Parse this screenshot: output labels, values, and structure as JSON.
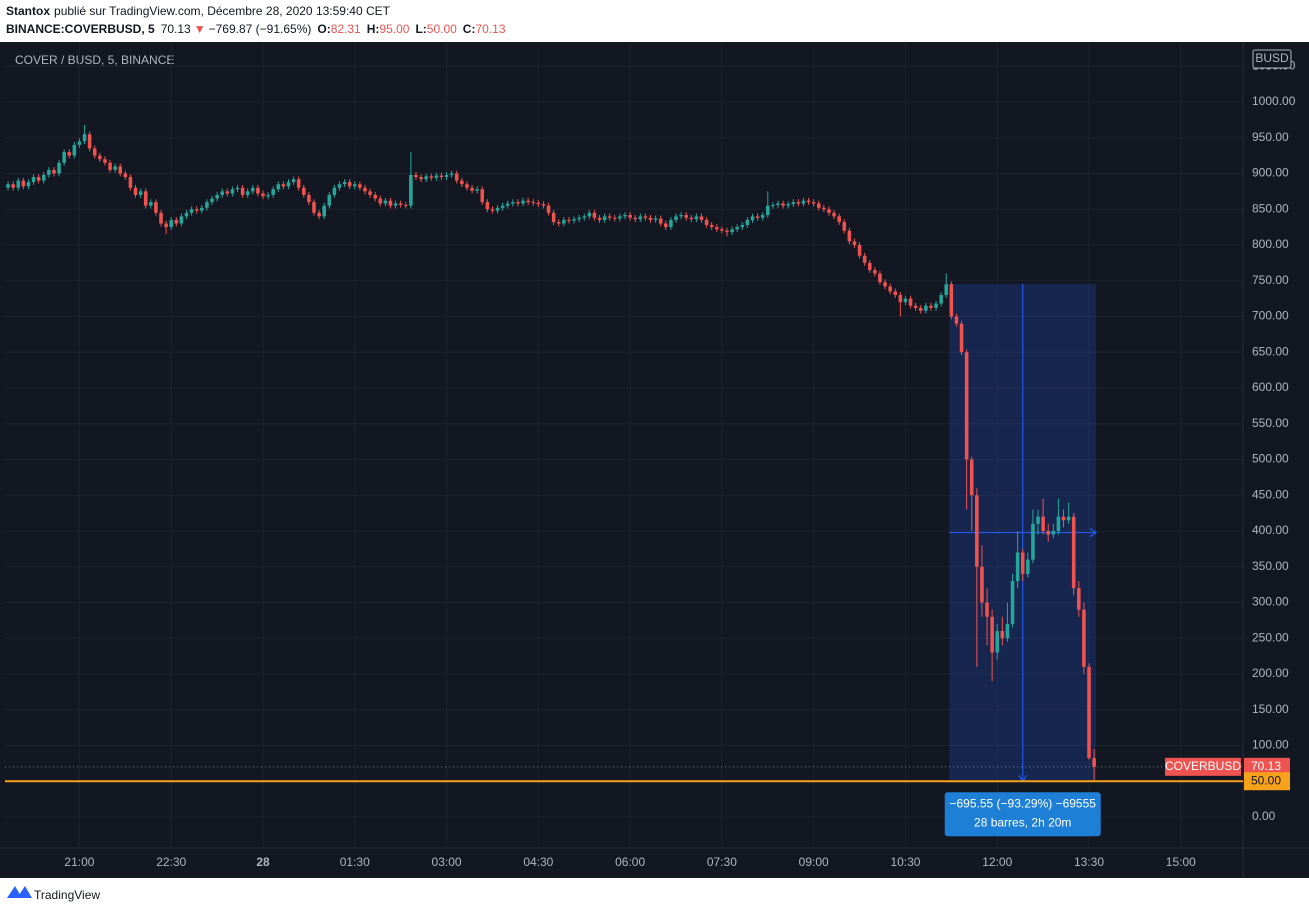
{
  "header": {
    "author": "Stantox",
    "byline": "publié sur TradingView.com, Décembre 28, 2020 13:59:40 CET",
    "symbol": "BINANCE:COVERBUSD, 5",
    "last": "70.13",
    "arrow": "▼",
    "change": "−769.87 (−91.65%)",
    "ohlc": [
      {
        "key": "O:",
        "value": "82.31"
      },
      {
        "key": "H:",
        "value": "95.00"
      },
      {
        "key": "L:",
        "value": "50.00"
      },
      {
        "key": "C:",
        "value": "70.13"
      }
    ]
  },
  "footer": {
    "brand": "TradingView"
  },
  "chart_data": {
    "type": "candlestick",
    "title": "COVER / BUSD, 5, BINANCE",
    "currency": "BUSD",
    "up_color": "#26a69a",
    "down_color": "#ef5350",
    "grid": true,
    "xlim": [
      -0.6,
      242.2
    ],
    "ylim": [
      -43.4,
      1083.9
    ],
    "xticks": [
      {
        "value": 14,
        "label": "21:00"
      },
      {
        "value": 32,
        "label": "22:30"
      },
      {
        "value": 50,
        "label": "28"
      },
      {
        "value": 68,
        "label": "01:30"
      },
      {
        "value": 86,
        "label": "03:00"
      },
      {
        "value": 104,
        "label": "04:30"
      },
      {
        "value": 122,
        "label": "06:00"
      },
      {
        "value": 140,
        "label": "07:30"
      },
      {
        "value": 158,
        "label": "09:00"
      },
      {
        "value": 176,
        "label": "10:30"
      },
      {
        "value": 194,
        "label": "12:00"
      },
      {
        "value": 212,
        "label": "13:30"
      },
      {
        "value": 230,
        "label": "15:00"
      }
    ],
    "yticks": [
      {
        "value": 0,
        "label": "0.00"
      },
      {
        "value": 50,
        "label": "50.00"
      },
      {
        "value": 100,
        "label": "100.00"
      },
      {
        "value": 150,
        "label": "150.00"
      },
      {
        "value": 200,
        "label": "200.00"
      },
      {
        "value": 250,
        "label": "250.00"
      },
      {
        "value": 300,
        "label": "300.00"
      },
      {
        "value": 350,
        "label": "350.00"
      },
      {
        "value": 400,
        "label": "400.00"
      },
      {
        "value": 450,
        "label": "450.00"
      },
      {
        "value": 500,
        "label": "500.00"
      },
      {
        "value": 550,
        "label": "550.00"
      },
      {
        "value": 600,
        "label": "600.00"
      },
      {
        "value": 650,
        "label": "650.00"
      },
      {
        "value": 700,
        "label": "700.00"
      },
      {
        "value": 750,
        "label": "750.00"
      },
      {
        "value": 800,
        "label": "800.00"
      },
      {
        "value": 850,
        "label": "850.00"
      },
      {
        "value": 900,
        "label": "900.00"
      },
      {
        "value": 950,
        "label": "950.00"
      },
      {
        "value": 1000,
        "label": "1000.00"
      },
      {
        "value": 1050,
        "label": "1050.00"
      }
    ],
    "price_lines": [
      {
        "name": "COVERBUSD",
        "value": 70.13,
        "color": "#ef5350"
      },
      {
        "value": 50,
        "label": "50.00",
        "color": "#f7a21b"
      }
    ],
    "measure": {
      "start": 185,
      "end": 213,
      "top": 745.55,
      "bottom": 50,
      "color": "#2962ff",
      "text": [
        "−695.55 (−93.29%) −69555",
        "28 barres, 2h 20m"
      ]
    },
    "candles": [
      [
        880,
        889,
        876,
        885
      ],
      [
        885,
        889,
        876,
        880
      ],
      [
        880,
        894,
        876,
        890
      ],
      [
        890,
        894,
        878,
        882
      ],
      [
        882,
        892,
        878,
        888
      ],
      [
        888,
        899,
        884,
        895
      ],
      [
        895,
        899,
        886,
        890
      ],
      [
        890,
        902,
        886,
        898
      ],
      [
        898,
        909,
        894,
        905
      ],
      [
        905,
        909,
        896,
        900
      ],
      [
        900,
        919,
        896,
        915
      ],
      [
        915,
        934,
        911,
        930
      ],
      [
        930,
        934,
        921,
        925
      ],
      [
        925,
        944,
        921,
        940
      ],
      [
        940,
        949,
        936,
        945
      ],
      [
        945,
        968,
        941,
        955
      ],
      [
        955,
        959,
        931,
        935
      ],
      [
        935,
        939,
        921,
        925
      ],
      [
        925,
        929,
        916,
        920
      ],
      [
        920,
        924,
        911,
        915
      ],
      [
        915,
        919,
        901,
        905
      ],
      [
        905,
        914,
        901,
        910
      ],
      [
        910,
        914,
        896,
        900
      ],
      [
        900,
        904,
        891,
        895
      ],
      [
        895,
        899,
        876,
        880
      ],
      [
        880,
        884,
        866,
        870
      ],
      [
        870,
        879,
        866,
        875
      ],
      [
        875,
        879,
        851,
        855
      ],
      [
        855,
        864,
        851,
        860
      ],
      [
        860,
        864,
        841,
        845
      ],
      [
        845,
        849,
        826,
        830
      ],
      [
        830,
        834,
        815,
        825
      ],
      [
        825,
        839,
        821,
        835
      ],
      [
        835,
        839,
        826,
        830
      ],
      [
        830,
        844,
        826,
        840
      ],
      [
        840,
        849,
        836,
        845
      ],
      [
        845,
        854,
        841,
        850
      ],
      [
        850,
        854,
        844,
        848
      ],
      [
        848,
        856,
        844,
        852
      ],
      [
        852,
        864,
        848,
        860
      ],
      [
        860,
        869,
        856,
        865
      ],
      [
        865,
        874,
        861,
        870
      ],
      [
        870,
        879,
        866,
        875
      ],
      [
        875,
        879,
        868,
        872
      ],
      [
        872,
        882,
        868,
        878
      ],
      [
        878,
        884,
        874,
        880
      ],
      [
        880,
        884,
        866,
        870
      ],
      [
        870,
        879,
        866,
        875
      ],
      [
        875,
        884,
        871,
        880
      ],
      [
        880,
        884,
        868,
        872
      ],
      [
        872,
        876,
        864,
        868
      ],
      [
        868,
        874,
        864,
        870
      ],
      [
        870,
        882,
        866,
        878
      ],
      [
        878,
        889,
        874,
        885
      ],
      [
        885,
        889,
        878,
        882
      ],
      [
        882,
        892,
        878,
        888
      ],
      [
        888,
        896,
        884,
        892
      ],
      [
        892,
        896,
        876,
        880
      ],
      [
        880,
        884,
        866,
        870
      ],
      [
        870,
        874,
        856,
        860
      ],
      [
        860,
        864,
        841,
        845
      ],
      [
        845,
        849,
        836,
        840
      ],
      [
        840,
        859,
        836,
        855
      ],
      [
        855,
        874,
        851,
        870
      ],
      [
        870,
        884,
        866,
        880
      ],
      [
        880,
        889,
        876,
        885
      ],
      [
        885,
        892,
        881,
        888
      ],
      [
        888,
        892,
        878,
        882
      ],
      [
        882,
        889,
        878,
        885
      ],
      [
        885,
        889,
        876,
        880
      ],
      [
        880,
        884,
        871,
        875
      ],
      [
        875,
        879,
        866,
        870
      ],
      [
        870,
        874,
        861,
        865
      ],
      [
        865,
        869,
        854,
        858
      ],
      [
        858,
        866,
        854,
        862
      ],
      [
        862,
        866,
        851,
        855
      ],
      [
        855,
        862,
        851,
        858
      ],
      [
        858,
        862,
        852,
        856
      ],
      [
        856,
        860,
        851,
        855
      ],
      [
        855,
        930,
        851,
        898
      ],
      [
        898,
        902,
        891,
        895
      ],
      [
        895,
        899,
        888,
        892
      ],
      [
        892,
        900,
        888,
        896
      ],
      [
        896,
        900,
        890,
        894
      ],
      [
        894,
        901,
        890,
        897
      ],
      [
        897,
        901,
        891,
        895
      ],
      [
        895,
        902,
        891,
        898
      ],
      [
        898,
        904,
        894,
        900
      ],
      [
        900,
        904,
        886,
        890
      ],
      [
        890,
        894,
        881,
        885
      ],
      [
        885,
        889,
        876,
        880
      ],
      [
        880,
        884,
        872,
        876
      ],
      [
        876,
        882,
        872,
        878
      ],
      [
        878,
        882,
        856,
        860
      ],
      [
        860,
        864,
        846,
        850
      ],
      [
        850,
        854,
        844,
        848
      ],
      [
        848,
        856,
        844,
        852
      ],
      [
        852,
        859,
        848,
        855
      ],
      [
        855,
        862,
        851,
        858
      ],
      [
        858,
        864,
        854,
        860
      ],
      [
        860,
        864,
        854,
        858
      ],
      [
        858,
        866,
        854,
        862
      ],
      [
        862,
        866,
        856,
        860
      ],
      [
        860,
        864,
        855,
        859
      ],
      [
        859,
        863,
        853,
        857
      ],
      [
        857,
        861,
        851,
        855
      ],
      [
        855,
        859,
        841,
        845
      ],
      [
        845,
        849,
        828,
        832
      ],
      [
        832,
        836,
        826,
        830
      ],
      [
        830,
        839,
        826,
        835
      ],
      [
        835,
        839,
        830,
        834
      ],
      [
        834,
        840,
        830,
        836
      ],
      [
        836,
        842,
        832,
        838
      ],
      [
        838,
        844,
        834,
        840
      ],
      [
        840,
        849,
        836,
        845
      ],
      [
        845,
        849,
        834,
        838
      ],
      [
        838,
        842,
        831,
        835
      ],
      [
        835,
        844,
        831,
        840
      ],
      [
        840,
        844,
        834,
        838
      ],
      [
        838,
        842,
        833,
        837
      ],
      [
        837,
        844,
        833,
        840
      ],
      [
        840,
        846,
        836,
        842
      ],
      [
        842,
        846,
        834,
        838
      ],
      [
        838,
        842,
        832,
        836
      ],
      [
        836,
        844,
        832,
        840
      ],
      [
        840,
        844,
        834,
        838
      ],
      [
        838,
        842,
        831,
        835
      ],
      [
        835,
        841,
        831,
        837
      ],
      [
        837,
        841,
        826,
        830
      ],
      [
        830,
        834,
        821,
        825
      ],
      [
        825,
        839,
        821,
        835
      ],
      [
        835,
        844,
        831,
        840
      ],
      [
        840,
        846,
        836,
        842
      ],
      [
        842,
        846,
        834,
        838
      ],
      [
        838,
        842,
        832,
        836
      ],
      [
        836,
        844,
        832,
        840
      ],
      [
        840,
        844,
        831,
        835
      ],
      [
        835,
        839,
        824,
        828
      ],
      [
        828,
        832,
        821,
        825
      ],
      [
        825,
        829,
        818,
        822
      ],
      [
        822,
        826,
        816,
        820
      ],
      [
        820,
        824,
        812,
        818
      ],
      [
        818,
        826,
        814,
        822
      ],
      [
        822,
        829,
        818,
        825
      ],
      [
        825,
        832,
        821,
        828
      ],
      [
        828,
        839,
        824,
        835
      ],
      [
        835,
        844,
        831,
        840
      ],
      [
        840,
        844,
        834,
        838
      ],
      [
        838,
        846,
        834,
        842
      ],
      [
        842,
        875,
        838,
        855
      ],
      [
        855,
        860,
        851,
        856
      ],
      [
        856,
        862,
        852,
        858
      ],
      [
        858,
        862,
        851,
        855
      ],
      [
        855,
        861,
        851,
        857
      ],
      [
        857,
        864,
        853,
        860
      ],
      [
        860,
        864,
        854,
        858
      ],
      [
        858,
        866,
        854,
        862
      ],
      [
        862,
        866,
        856,
        860
      ],
      [
        860,
        864,
        854,
        858
      ],
      [
        858,
        862,
        848,
        852
      ],
      [
        852,
        856,
        846,
        850
      ],
      [
        850,
        854,
        841,
        845
      ],
      [
        845,
        849,
        836,
        840
      ],
      [
        840,
        844,
        828,
        832
      ],
      [
        832,
        836,
        816,
        820
      ],
      [
        820,
        824,
        801,
        805
      ],
      [
        805,
        809,
        796,
        800
      ],
      [
        800,
        804,
        781,
        785
      ],
      [
        785,
        789,
        771,
        775
      ],
      [
        775,
        779,
        761,
        765
      ],
      [
        765,
        769,
        756,
        760
      ],
      [
        760,
        764,
        744,
        748
      ],
      [
        748,
        752,
        738,
        742
      ],
      [
        742,
        746,
        731,
        735
      ],
      [
        735,
        739,
        726,
        730
      ],
      [
        730,
        734,
        700,
        720
      ],
      [
        720,
        729,
        716,
        725
      ],
      [
        725,
        729,
        711,
        715
      ],
      [
        715,
        719,
        708,
        712
      ],
      [
        712,
        716,
        704,
        708
      ],
      [
        708,
        719,
        704,
        715
      ],
      [
        715,
        719,
        708,
        712
      ],
      [
        712,
        722,
        708,
        718
      ],
      [
        718,
        734,
        714,
        730
      ],
      [
        730,
        760,
        726,
        745
      ],
      [
        745,
        749,
        696,
        700
      ],
      [
        700,
        704,
        686,
        690
      ],
      [
        690,
        694,
        646,
        650
      ],
      [
        650,
        654,
        430,
        500
      ],
      [
        500,
        504,
        400,
        450
      ],
      [
        450,
        460,
        210,
        350
      ],
      [
        350,
        380,
        280,
        300
      ],
      [
        300,
        320,
        240,
        280
      ],
      [
        280,
        290,
        190,
        230
      ],
      [
        230,
        270,
        220,
        260
      ],
      [
        260,
        280,
        240,
        250
      ],
      [
        250,
        300,
        245,
        270
      ],
      [
        270,
        340,
        265,
        330
      ],
      [
        330,
        400,
        320,
        370
      ],
      [
        370,
        375,
        330,
        340
      ],
      [
        340,
        370,
        335,
        360
      ],
      [
        360,
        430,
        355,
        410
      ],
      [
        410,
        430,
        395,
        420
      ],
      [
        420,
        445,
        395,
        400
      ],
      [
        400,
        410,
        385,
        395
      ],
      [
        395,
        410,
        390,
        400
      ],
      [
        400,
        445,
        395,
        420
      ],
      [
        420,
        430,
        405,
        415
      ],
      [
        415,
        440,
        410,
        420
      ],
      [
        420,
        425,
        310,
        320
      ],
      [
        320,
        330,
        280,
        290
      ],
      [
        290,
        300,
        200,
        210
      ],
      [
        210,
        215,
        80,
        82.31
      ],
      [
        82.31,
        95,
        50,
        70.13
      ]
    ]
  }
}
